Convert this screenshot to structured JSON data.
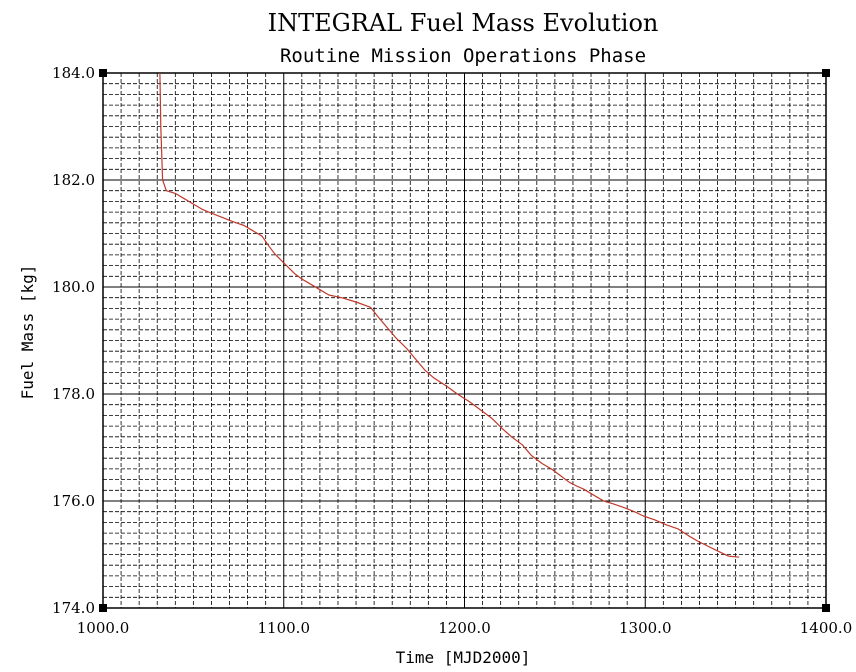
{
  "chart_data": {
    "type": "line",
    "title": "INTEGRAL Fuel Mass Evolution",
    "subtitle": "Routine Mission Operations Phase",
    "xlabel": "Time [MJD2000]",
    "ylabel": "Fuel Mass [kg]",
    "xlim": [
      1000.0,
      1400.0
    ],
    "ylim": [
      174.0,
      184.0
    ],
    "xticks": [
      "1000.0",
      "1100.0",
      "1200.0",
      "1300.0",
      "1400.0"
    ],
    "yticks": [
      "174.0",
      "176.0",
      "178.0",
      "180.0",
      "182.0",
      "184.0"
    ],
    "grid": true,
    "line_color": "#c0392b",
    "grid_color": "#000000",
    "series": [
      {
        "x": [
          1031.5,
          1032.0,
          1032.5,
          1033.0,
          1034.0,
          1035.0,
          1040.0,
          1045.0,
          1050.0,
          1055.0,
          1060.0,
          1066.0,
          1072.0,
          1078.0,
          1083.0,
          1088.0,
          1091.0,
          1095.0,
          1100.0,
          1106.0,
          1110.0,
          1115.0,
          1120.0,
          1125.0,
          1132.0,
          1140.0,
          1148.0,
          1152.0,
          1157.0,
          1162.0,
          1168.0,
          1173.0,
          1178.0,
          1183.0,
          1190.0,
          1196.0,
          1203.0,
          1209.0,
          1215.0,
          1221.0,
          1226.0,
          1232.0,
          1237.0,
          1243.0,
          1248.0,
          1254.0,
          1258.0,
          1262.0,
          1266.0,
          1272.0,
          1277.0,
          1282.0,
          1288.0,
          1294.0,
          1299.0,
          1305.0,
          1312.0,
          1318.0,
          1324.0,
          1329.0,
          1335.0,
          1341.0,
          1346.0,
          1352.0
        ],
        "values": [
          184.0,
          183.0,
          182.5,
          182.0,
          181.9,
          181.8,
          181.75,
          181.65,
          181.55,
          181.45,
          181.38,
          181.3,
          181.22,
          181.15,
          181.05,
          180.95,
          180.8,
          180.62,
          180.45,
          180.25,
          180.15,
          180.05,
          179.95,
          179.85,
          179.8,
          179.72,
          179.62,
          179.45,
          179.25,
          179.05,
          178.85,
          178.65,
          178.45,
          178.3,
          178.15,
          178.0,
          177.85,
          177.7,
          177.55,
          177.35,
          177.2,
          177.05,
          176.85,
          176.7,
          176.6,
          176.45,
          176.35,
          176.28,
          176.22,
          176.1,
          176.0,
          175.95,
          175.88,
          175.8,
          175.72,
          175.65,
          175.55,
          175.48,
          175.35,
          175.25,
          175.15,
          175.05,
          174.97,
          174.95
        ]
      }
    ]
  }
}
